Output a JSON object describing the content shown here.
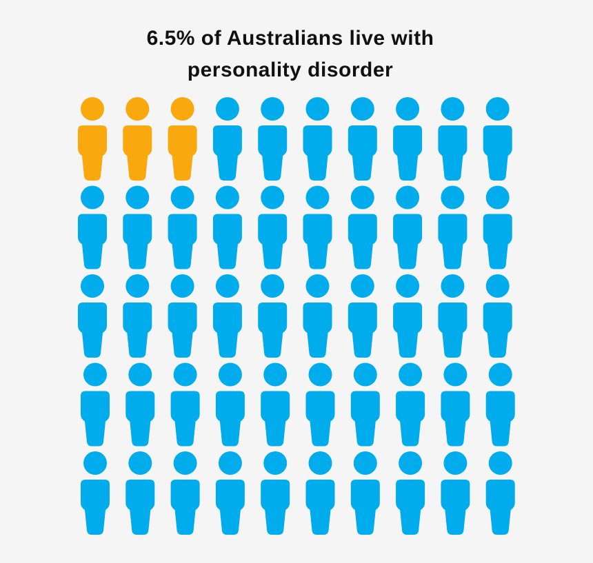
{
  "chart_data": {
    "type": "pictogram",
    "title": "6.5% of Australians live with personality disorder",
    "values": [
      3,
      47
    ],
    "colors": [
      "#f9a80e",
      "#00acec"
    ]
  }
}
